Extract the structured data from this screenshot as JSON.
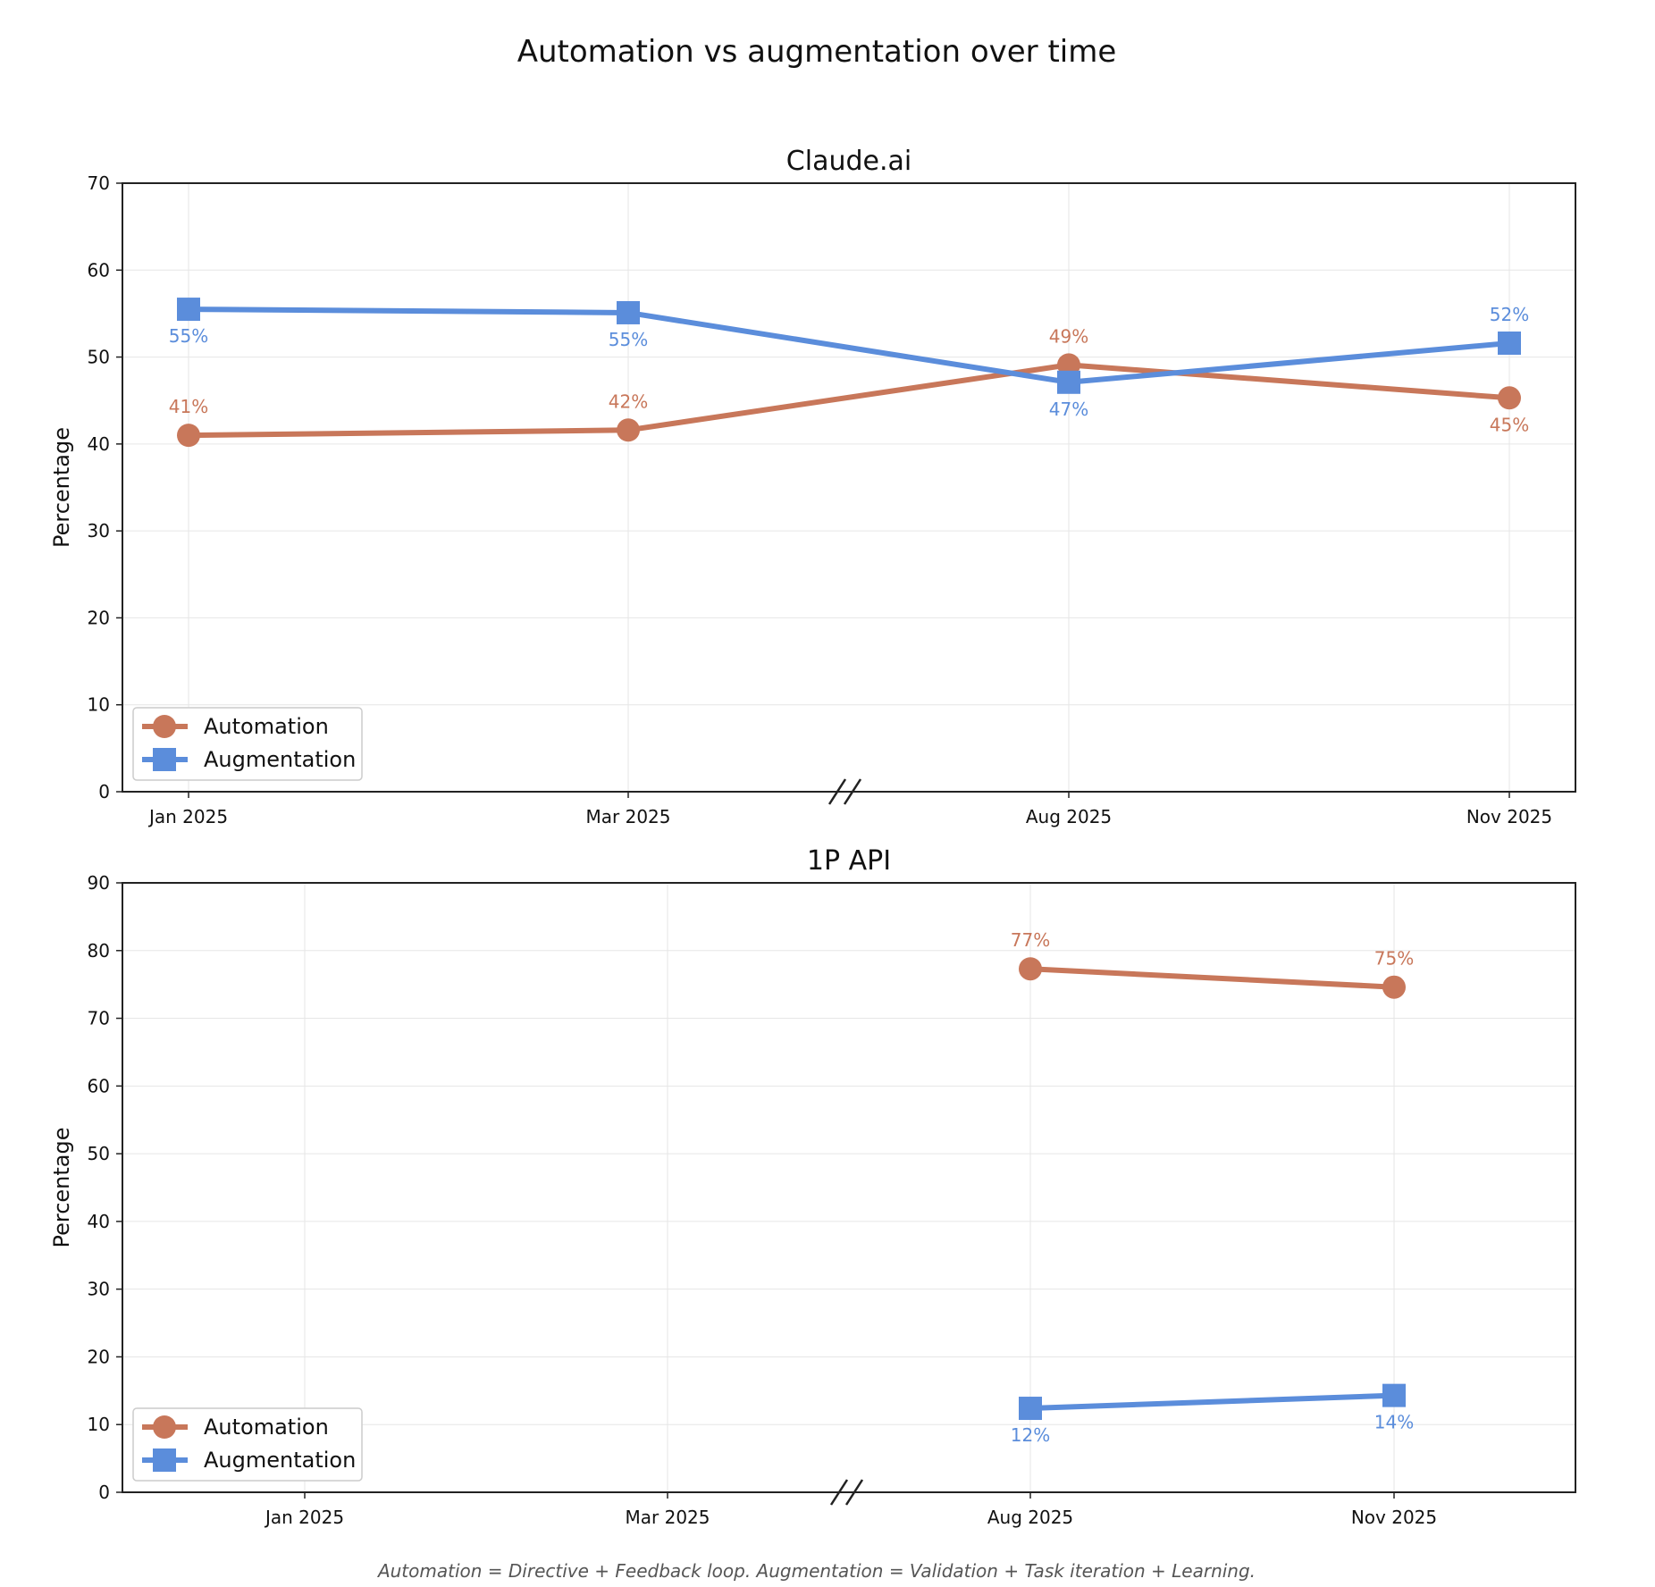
{
  "title": "Automation vs augmentation over time",
  "footnote": "Automation = Directive + Feedback loop. Augmentation = Validation + Task iteration + Learning.",
  "colors": {
    "automation": "#C8775A",
    "augmentation": "#5B8DDB",
    "grid": "#e6e6e6",
    "axis": "#222222"
  },
  "chart_data": [
    {
      "type": "line",
      "title": "Claude.ai",
      "ylabel": "Percentage",
      "xlabel": "",
      "categories": [
        "Jan 2025",
        "Mar 2025",
        "Aug 2025",
        "Nov 2025"
      ],
      "ylim": [
        0,
        70
      ],
      "yticks": [
        0,
        10,
        20,
        30,
        40,
        50,
        60,
        70
      ],
      "grid": true,
      "axis_break": "between Mar 2025 and Aug 2025",
      "legend": "lower-left",
      "series": [
        {
          "name": "Automation",
          "marker": "circle",
          "values": [
            41.0,
            41.6,
            49.1,
            45.3
          ],
          "labels": [
            "41%",
            "42%",
            "49%",
            "45%"
          ],
          "label_side": [
            "above",
            "above",
            "above",
            "below"
          ]
        },
        {
          "name": "Augmentation",
          "marker": "square",
          "values": [
            55.5,
            55.1,
            47.1,
            51.6
          ],
          "labels": [
            "55%",
            "55%",
            "47%",
            "52%"
          ],
          "label_side": [
            "below",
            "below",
            "below",
            "above"
          ]
        }
      ]
    },
    {
      "type": "line",
      "title": "1P API",
      "ylabel": "Percentage",
      "xlabel": "",
      "categories": [
        "Jan 2025",
        "Mar 2025",
        "Aug 2025",
        "Nov 2025"
      ],
      "ylim": [
        0,
        90
      ],
      "yticks": [
        0,
        10,
        20,
        30,
        40,
        50,
        60,
        70,
        80,
        90
      ],
      "grid": true,
      "axis_break": "between Mar 2025 and Aug 2025",
      "legend": "lower-left",
      "series": [
        {
          "name": "Automation",
          "marker": "circle",
          "values": [
            null,
            null,
            77.3,
            74.6
          ],
          "labels": [
            null,
            null,
            "77%",
            "75%"
          ],
          "label_side": [
            null,
            null,
            "above",
            "above"
          ]
        },
        {
          "name": "Augmentation",
          "marker": "square",
          "values": [
            null,
            null,
            12.4,
            14.3
          ],
          "labels": [
            null,
            null,
            "12%",
            "14%"
          ],
          "label_side": [
            null,
            null,
            "below",
            "below"
          ]
        }
      ]
    }
  ]
}
